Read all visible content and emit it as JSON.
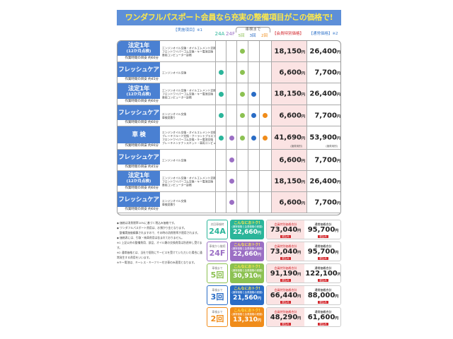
{
  "title": "ワンダフルパスポート会員なら充実の整備項目がこの価格で!",
  "headers": {
    "items": "【実施項目】※1",
    "a24": "24A",
    "f24": "24F",
    "until": "車検まで",
    "c5": "5回",
    "c3": "3回",
    "c2": "2回",
    "member": "【会員特別価格】",
    "normal": "【通常価格】※2"
  },
  "colors": {
    "24A": "#2bb59a",
    "24F": "#9b6fc4",
    "5": "#8cc152",
    "3": "#2a6cc5",
    "2": "#f08c1a",
    "label": "#4a80d2"
  },
  "yen": "円",
  "rows": [
    {
      "name": "法定1年",
      "sub": "(12か月点検)",
      "time": "作業時間の目安 約60分",
      "items": [
        "エンジンオイル交換・オイルエレメント交換",
        "フロントワイパーゴム交換・キー電池交換",
        "車両コンピューター診断"
      ],
      "marks": [
        "5"
      ],
      "member": "18,150",
      "normal": "26,400"
    },
    {
      "name": "フレッシュケア",
      "sub": "",
      "time": "作業時間の目安 約45分",
      "items": [
        "エンジンオイル交換"
      ],
      "marks": [
        "24A",
        "5"
      ],
      "member": "6,600",
      "normal": "7,700"
    },
    {
      "name": "法定1年",
      "sub": "(12か月点検)",
      "time": "作業時間の目安 約60分",
      "items": [
        "エンジンオイル交換・オイルエレメント交換",
        "フロントワイパーゴム交換・キー電池交換",
        "車両コンピューター診断"
      ],
      "marks": [
        "24A",
        "5",
        "3"
      ],
      "member": "18,150",
      "normal": "26,400"
    },
    {
      "name": "フレッシュケア",
      "sub": "",
      "time": "作業時間の目安 約60分",
      "items": [
        "エンジンオイル交換",
        "車検見積り"
      ],
      "marks": [
        "24A",
        "5",
        "3",
        "2"
      ],
      "member": "6,600",
      "normal": "7,700"
    },
    {
      "name": "車 検",
      "sub": "",
      "time": "作業時間の目安 約90分",
      "items": [
        "エンジンオイル交換・オイルエレメント交換",
        "ブレーキフルード交換・クーラントプラスプレミアム",
        "フロントワイパーゴム交換・キー電池交換",
        "ブレーキメンテナンスキット・車両コンピューター診断"
      ],
      "marks": [
        "24A",
        "24F",
        "5",
        "3",
        "2"
      ],
      "member": "41,690",
      "normal": "53,900",
      "note": "(諸費用別)"
    },
    {
      "name": "フレッシュケア",
      "sub": "",
      "time": "作業時間の目安 約45分",
      "items": [
        "エンジンオイル交換"
      ],
      "marks": [
        "24F"
      ],
      "member": "6,600",
      "normal": "7,700"
    },
    {
      "name": "法定1年",
      "sub": "(12か月点検)",
      "time": "作業時間の目安 約60分",
      "items": [
        "エンジンオイル交換・オイルエレメント交換",
        "フロントワイパーゴム交換・キー電池交換",
        "車両コンピューター診断"
      ],
      "marks": [
        "24F"
      ],
      "member": "18,150",
      "normal": "26,400"
    },
    {
      "name": "フレッシュケア",
      "sub": "",
      "time": "作業時間の目安 約60分",
      "items": [
        "エンジンオイル交換",
        "車検見積り"
      ],
      "marks": [
        "24F"
      ],
      "member": "6,600",
      "normal": "7,700"
    }
  ],
  "notes": [
    "◆ 価格は消費税率10%に基づく税込み価格です。",
    "◆ ワンダフルパスポート費用は、お預かり金となります。",
    "　整備実施後精算されますので、その時の消費税率が適用されます。",
    "◆ 価格表には、引取・納車費用は含まれておりません。",
    "※1 上記以外の整備費用、部品、オイル類の交換費用は別途申し受けます。",
    "※2 通常価格とは、当社で個別にサービスを受けていただいた場合に通常発生する費用をいいます。",
    "※キー電池は、キーレス・キーフリー付き車のみ適用となります。"
  ],
  "panels": [
    {
      "label_small": "次回車検時",
      "label": "24A",
      "color": "#2bb59a",
      "deal": "こんなにおトク!",
      "deal_sub": "(通常価格と会員価格の差額)",
      "saving": "22,660",
      "member_title": "会員特別価格合計",
      "member": "73,040",
      "normal_title": "通常価格合計",
      "normal": "95,700",
      "tax": "税込み"
    },
    {
      "label_small": "車検から継続",
      "label": "24F",
      "color": "#9b6fc4",
      "deal": "こんなにおトク!",
      "deal_sub": "(通常価格と会員価格の差額)",
      "saving": "22,660",
      "member_title": "会員特別価格合計",
      "member": "73,040",
      "normal_title": "通常価格合計",
      "normal": "95,700",
      "tax": "税込み"
    },
    {
      "label_small": "車検まで",
      "label": "5回",
      "color": "#8cc152",
      "deal": "こんなにおトク!",
      "deal_sub": "(通常価格と会員価格の差額)",
      "saving": "30,910",
      "member_title": "会員特別価格合計",
      "member": "91,190",
      "normal_title": "通常価格合計",
      "normal": "122,100",
      "tax": "税込み"
    },
    {
      "label_small": "車検まで",
      "label": "3回",
      "color": "#2a6cc5",
      "deal": "こんなにおトク!",
      "deal_sub": "(通常価格と会員価格の差額)",
      "saving": "21,560",
      "member_title": "会員特別価格合計",
      "member": "66,440",
      "normal_title": "通常価格合計",
      "normal": "88,000",
      "tax": "税込み"
    },
    {
      "label_small": "車検まで",
      "label": "2回",
      "color": "#f08c1a",
      "deal": "こんなにおトク!",
      "deal_sub": "(通常価格と会員価格の差額)",
      "saving": "13,310",
      "member_title": "会員特別価格合計",
      "member": "48,290",
      "normal_title": "通常価格合計",
      "normal": "61,600",
      "tax": "税込み"
    }
  ]
}
